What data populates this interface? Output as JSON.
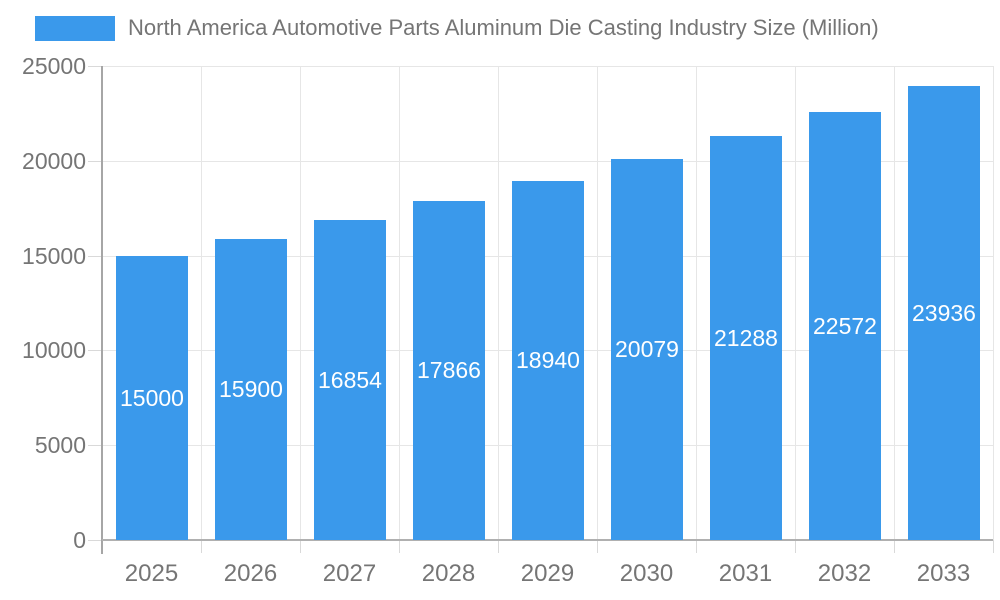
{
  "chart_data": {
    "type": "bar",
    "title": "North America Automotive Parts Aluminum Die Casting Industry Size (Million)",
    "categories": [
      "2025",
      "2026",
      "2027",
      "2028",
      "2029",
      "2030",
      "2031",
      "2032",
      "2033"
    ],
    "values": [
      15000,
      15900,
      16854,
      17866,
      18940,
      20079,
      21288,
      22572,
      23936
    ],
    "value_labels": [
      "15000",
      "15900",
      "16854",
      "17866",
      "18940",
      "20079",
      "21288",
      "22572",
      "23936"
    ],
    "xlabel": "",
    "ylabel": "",
    "ylim": [
      0,
      25000
    ],
    "yticks": [
      0,
      5000,
      10000,
      15000,
      20000,
      25000
    ],
    "ytick_labels": [
      "0",
      "5000",
      "10000",
      "15000",
      "20000",
      "25000"
    ],
    "grid": true,
    "legend_position": "top-left",
    "colors": {
      "bar": "#3A99EB",
      "value_label": "#FFFFFF",
      "axis_text": "#757575",
      "gridline": "#E6E6E6",
      "tick_line": "#D9D9D9",
      "y_axis_line": "#A6A6A6",
      "x_axis_line": "#B0B0B0",
      "background": "#FFFFFF"
    }
  }
}
